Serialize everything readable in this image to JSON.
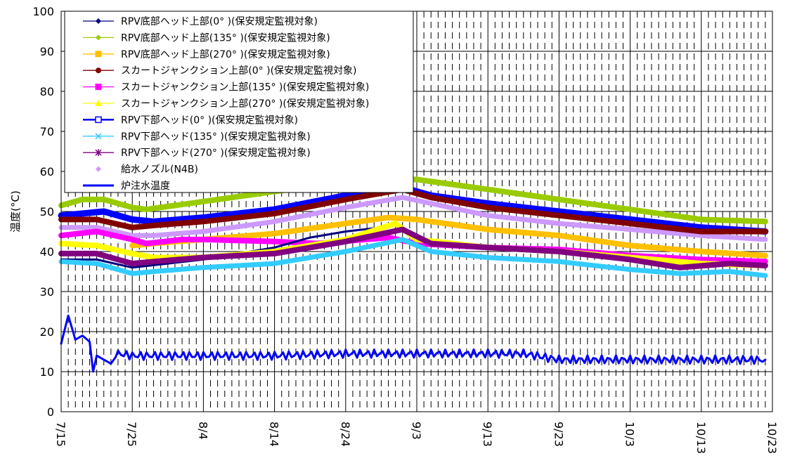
{
  "chart_data": {
    "type": "line",
    "ylabel": "温度(°C)",
    "ylim": [
      0,
      100
    ],
    "yticks": [
      0,
      10,
      20,
      30,
      40,
      50,
      60,
      70,
      80,
      90,
      100
    ],
    "xlim": [
      "2013-07-15",
      "2013-10-23"
    ],
    "xticks": [
      "2013-07-15",
      "2013-07-25",
      "2013-08-04",
      "2013-08-14",
      "2013-08-24",
      "2013-09-03",
      "2013-09-13",
      "2013-09-23",
      "2013-10-03",
      "2013-10-13",
      "2013-10-23"
    ],
    "xtick_labels": [
      "7/15",
      "7/25",
      "8/4",
      "8/14",
      "8/24",
      "9/3",
      "9/13",
      "9/23",
      "10/3",
      "10/13",
      "10/23"
    ],
    "grid": true,
    "legend_position": "top-left",
    "series": [
      {
        "name": "RPV底部ヘッド上部(0° )(保安規定監視対象)",
        "color": "#000080",
        "marker": "diamond",
        "points": [
          [
            "2013-07-15",
            38
          ],
          [
            "2013-07-20",
            38
          ],
          [
            "2013-07-25",
            36
          ],
          [
            "2013-07-30",
            37
          ],
          [
            "2013-08-04",
            38
          ],
          [
            "2013-08-09",
            39.5
          ],
          [
            "2013-08-14",
            41
          ],
          [
            "2013-08-19",
            43.5
          ],
          [
            "2013-08-24",
            45
          ],
          [
            "2013-08-29",
            46
          ]
        ]
      },
      {
        "name": "RPV底部ヘッド上部(135° )(保安規定監視対象)",
        "color": "#99cc00",
        "marker": "diamond",
        "points": [
          [
            "2013-07-15",
            51.5
          ],
          [
            "2013-07-18",
            53
          ],
          [
            "2013-07-21",
            53
          ],
          [
            "2013-07-25",
            51
          ],
          [
            "2013-07-27",
            50.5
          ],
          [
            "2013-08-04",
            52.5
          ],
          [
            "2013-08-14",
            55
          ],
          [
            "2013-08-24",
            57.5
          ],
          [
            "2013-09-03",
            58
          ],
          [
            "2013-09-13",
            55.5
          ],
          [
            "2013-09-23",
            53
          ],
          [
            "2013-10-03",
            50.5
          ],
          [
            "2013-10-13",
            48
          ],
          [
            "2013-10-22",
            47.5
          ]
        ]
      },
      {
        "name": "RPV底部ヘッド上部(270° )(保安規定監視対象)",
        "color": "#ffc000",
        "marker": "square",
        "points": [
          [
            "2013-07-25",
            41.5
          ],
          [
            "2013-07-28",
            42
          ],
          [
            "2013-08-04",
            43
          ],
          [
            "2013-08-14",
            44.5
          ],
          [
            "2013-08-24",
            47
          ],
          [
            "2013-08-30",
            48.5
          ],
          [
            "2013-09-03",
            48
          ],
          [
            "2013-09-13",
            45.5
          ],
          [
            "2013-09-23",
            44
          ],
          [
            "2013-10-03",
            41.5
          ],
          [
            "2013-10-13",
            40
          ],
          [
            "2013-10-22",
            39
          ]
        ]
      },
      {
        "name": "スカートジャンクション上部(0° )(保安規定監視対象)",
        "color": "#800000",
        "marker": "circle",
        "points": [
          [
            "2013-07-15",
            48
          ],
          [
            "2013-07-20",
            48
          ],
          [
            "2013-07-25",
            46
          ],
          [
            "2013-07-28",
            46.5
          ],
          [
            "2013-08-04",
            47.5
          ],
          [
            "2013-08-14",
            49.5
          ],
          [
            "2013-08-24",
            53
          ],
          [
            "2013-09-01",
            55.5
          ],
          [
            "2013-09-05",
            53.5
          ],
          [
            "2013-09-13",
            51
          ],
          [
            "2013-09-23",
            49
          ],
          [
            "2013-10-03",
            47
          ],
          [
            "2013-10-13",
            45
          ],
          [
            "2013-10-22",
            45
          ]
        ]
      },
      {
        "name": "スカートジャンクション上部(135° )(保安規定監視対象)",
        "color": "#ff00ff",
        "marker": "square",
        "points": [
          [
            "2013-07-15",
            44
          ],
          [
            "2013-07-20",
            45
          ],
          [
            "2013-07-25",
            43
          ],
          [
            "2013-07-27",
            42
          ],
          [
            "2013-08-01",
            43
          ],
          [
            "2013-08-04",
            43
          ],
          [
            "2013-08-14",
            42.5
          ],
          [
            "2013-08-20",
            42
          ],
          [
            "2013-08-30",
            43.5
          ],
          [
            "2013-09-03",
            42
          ],
          [
            "2013-09-13",
            41
          ],
          [
            "2013-09-23",
            40.5
          ],
          [
            "2013-10-03",
            39
          ],
          [
            "2013-10-13",
            38
          ],
          [
            "2013-10-22",
            37.5
          ]
        ]
      },
      {
        "name": "スカートジャンクション上部(270° )(保安規定監視対象)",
        "color": "#ffff00",
        "marker": "triangle",
        "points": [
          [
            "2013-07-15",
            42
          ],
          [
            "2013-07-20",
            41.5
          ],
          [
            "2013-07-25",
            39.5
          ],
          [
            "2013-07-28",
            38.5
          ],
          [
            "2013-08-04",
            38.5
          ],
          [
            "2013-08-14",
            40
          ],
          [
            "2013-08-24",
            43
          ],
          [
            "2013-08-31",
            47
          ],
          [
            "2013-09-03",
            43
          ],
          [
            "2013-09-13",
            41
          ],
          [
            "2013-09-23",
            40
          ],
          [
            "2013-10-03",
            38.5
          ],
          [
            "2013-10-13",
            37
          ],
          [
            "2013-10-22",
            36.5
          ]
        ]
      },
      {
        "name": "RPV下部ヘッド(0° )(保安規定監視対象)",
        "color": "#0000ff",
        "marker": "square",
        "points": [
          [
            "2013-07-15",
            49
          ],
          [
            "2013-07-21",
            50
          ],
          [
            "2013-07-25",
            48
          ],
          [
            "2013-07-28",
            47.5
          ],
          [
            "2013-08-04",
            48.5
          ],
          [
            "2013-08-14",
            50.5
          ],
          [
            "2013-08-24",
            54
          ],
          [
            "2013-09-01",
            56
          ],
          [
            "2013-09-05",
            54
          ],
          [
            "2013-09-13",
            52
          ],
          [
            "2013-09-23",
            50
          ],
          [
            "2013-10-03",
            48
          ],
          [
            "2013-10-13",
            46
          ],
          [
            "2013-10-22",
            45
          ]
        ]
      },
      {
        "name": "RPV下部ヘッド(135° )(保安規定監視対象)",
        "color": "#33ccff",
        "marker": "x",
        "points": [
          [
            "2013-07-15",
            37.5
          ],
          [
            "2013-07-20",
            37
          ],
          [
            "2013-07-25",
            34.5
          ],
          [
            "2013-07-28",
            35
          ],
          [
            "2013-08-04",
            36
          ],
          [
            "2013-08-14",
            37
          ],
          [
            "2013-08-24",
            40
          ],
          [
            "2013-09-01",
            43
          ],
          [
            "2013-09-05",
            40
          ],
          [
            "2013-09-13",
            38.5
          ],
          [
            "2013-09-23",
            37.5
          ],
          [
            "2013-10-03",
            35.5
          ],
          [
            "2013-10-10",
            34.5
          ],
          [
            "2013-10-17",
            35
          ],
          [
            "2013-10-22",
            34
          ]
        ]
      },
      {
        "name": "RPV下部ヘッド(270° )(保安規定監視対象)",
        "color": "#800080",
        "marker": "star",
        "points": [
          [
            "2013-07-15",
            39.5
          ],
          [
            "2013-07-20",
            39.5
          ],
          [
            "2013-07-25",
            37
          ],
          [
            "2013-07-28",
            37.5
          ],
          [
            "2013-08-04",
            38.5
          ],
          [
            "2013-08-14",
            39.5
          ],
          [
            "2013-08-24",
            42.5
          ],
          [
            "2013-09-01",
            45.5
          ],
          [
            "2013-09-05",
            42
          ],
          [
            "2013-09-13",
            41
          ],
          [
            "2013-09-23",
            40
          ],
          [
            "2013-10-03",
            38
          ],
          [
            "2013-10-10",
            36
          ],
          [
            "2013-10-17",
            37
          ],
          [
            "2013-10-22",
            36.5
          ]
        ]
      },
      {
        "name": "給水ノズル(N4B)",
        "color": "#cc99ff",
        "marker": "diamond",
        "points": [
          [
            "2013-07-15",
            46
          ],
          [
            "2013-07-20",
            46
          ],
          [
            "2013-07-25",
            44
          ],
          [
            "2013-07-28",
            44
          ],
          [
            "2013-08-04",
            45
          ],
          [
            "2013-08-14",
            47.5
          ],
          [
            "2013-08-24",
            51
          ],
          [
            "2013-09-01",
            53.5
          ],
          [
            "2013-09-05",
            52
          ],
          [
            "2013-09-13",
            49
          ],
          [
            "2013-09-23",
            47
          ],
          [
            "2013-10-03",
            45.5
          ],
          [
            "2013-10-13",
            44
          ],
          [
            "2013-10-22",
            43
          ]
        ]
      },
      {
        "name": "炉注水温度",
        "color": "#0000ff",
        "marker": "none",
        "points": [
          [
            "2013-07-15",
            17
          ],
          [
            "2013-07-16",
            24
          ],
          [
            "2013-07-17",
            18
          ],
          [
            "2013-07-18",
            19
          ],
          [
            "2013-07-19",
            17.5
          ],
          [
            "2013-07-19T12",
            10
          ],
          [
            "2013-07-20",
            14
          ],
          [
            "2013-07-21",
            13
          ],
          [
            "2013-07-22",
            12
          ],
          [
            "2013-07-23",
            14.5
          ],
          [
            "2013-07-25",
            14
          ],
          [
            "2013-08-04",
            14
          ],
          [
            "2013-08-14",
            14
          ],
          [
            "2013-08-24",
            14.5
          ],
          [
            "2013-09-03",
            14.5
          ],
          [
            "2013-09-13",
            14.5
          ],
          [
            "2013-09-18",
            14.5
          ],
          [
            "2013-09-23",
            13
          ],
          [
            "2013-10-03",
            13
          ],
          [
            "2013-10-13",
            13
          ],
          [
            "2013-10-22",
            13
          ]
        ]
      }
    ]
  }
}
